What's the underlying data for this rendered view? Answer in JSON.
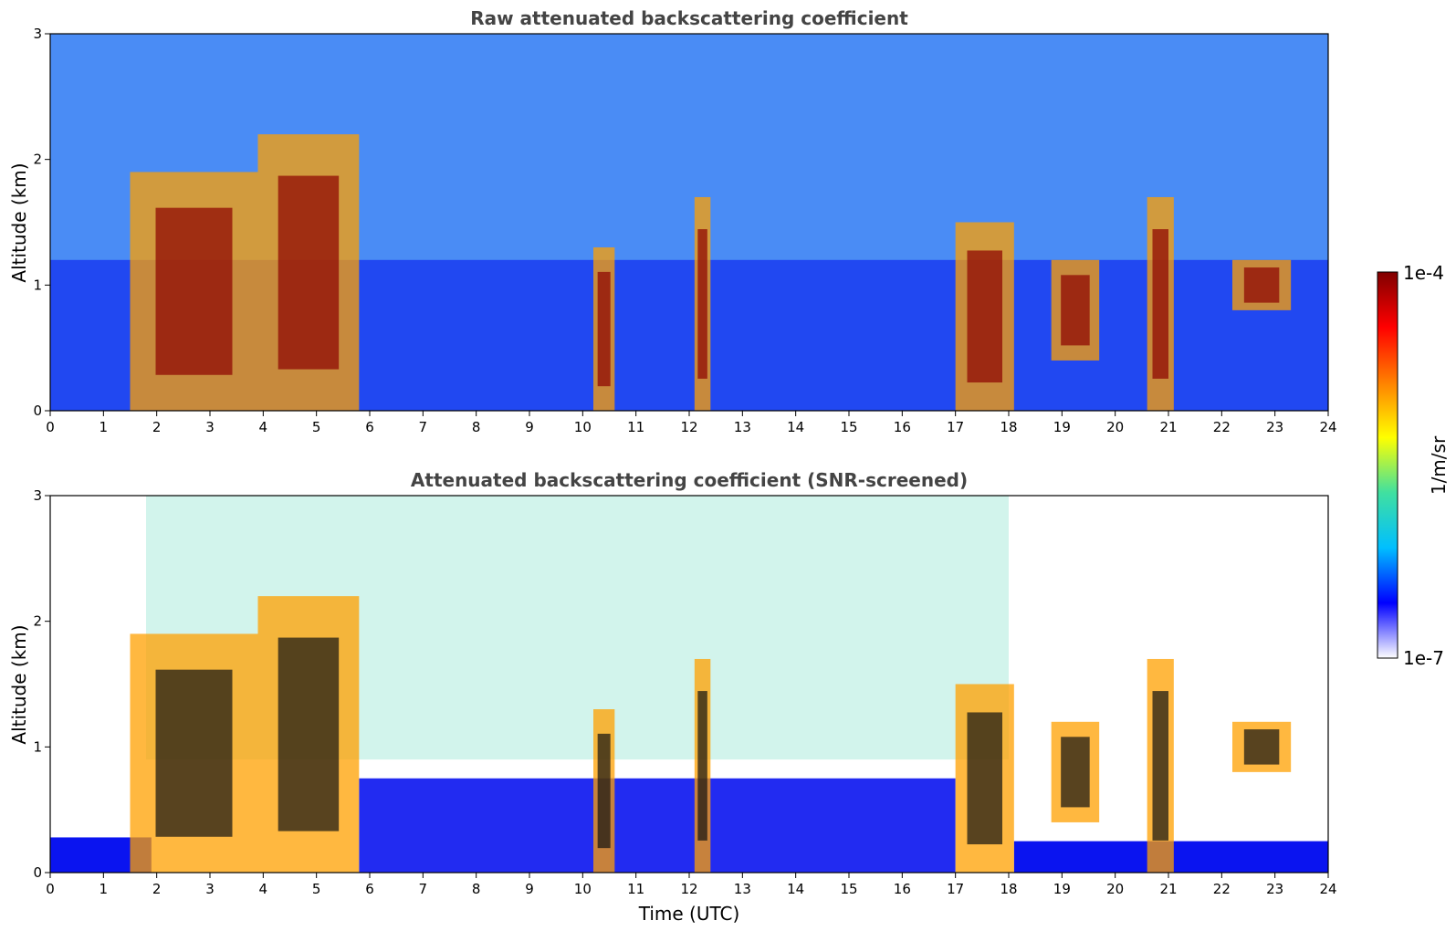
{
  "chart_data": [
    {
      "type": "heatmap",
      "title": "Raw attenuated backscattering coefficient",
      "xlabel": "",
      "ylabel": "Altitude (km)",
      "xlim": [
        0,
        24
      ],
      "ylim": [
        0,
        3
      ],
      "xticks": [
        "0",
        "1",
        "2",
        "3",
        "4",
        "5",
        "6",
        "7",
        "8",
        "9",
        "10",
        "11",
        "12",
        "13",
        "14",
        "15",
        "16",
        "17",
        "18",
        "19",
        "20",
        "21",
        "22",
        "23",
        "24"
      ],
      "yticks": [
        "0",
        "1",
        "2",
        "3"
      ],
      "features": [
        {
          "kind": "cloud",
          "x": [
            1.5,
            3.9
          ],
          "y": [
            0.0,
            1.9
          ]
        },
        {
          "kind": "cloud",
          "x": [
            3.9,
            5.8
          ],
          "y": [
            0.0,
            2.2
          ]
        },
        {
          "kind": "cloud",
          "x": [
            10.2,
            10.6
          ],
          "y": [
            0.0,
            1.3
          ]
        },
        {
          "kind": "cloud",
          "x": [
            12.1,
            12.4
          ],
          "y": [
            0.0,
            1.7
          ]
        },
        {
          "kind": "cloud",
          "x": [
            17.0,
            18.1
          ],
          "y": [
            0.0,
            1.5
          ]
        },
        {
          "kind": "cloud",
          "x": [
            18.8,
            19.7
          ],
          "y": [
            0.4,
            1.2
          ]
        },
        {
          "kind": "cloud",
          "x": [
            20.6,
            21.1
          ],
          "y": [
            0.0,
            1.7
          ]
        },
        {
          "kind": "cloud",
          "x": [
            22.2,
            23.3
          ],
          "y": [
            0.8,
            1.2
          ]
        }
      ]
    },
    {
      "type": "heatmap",
      "title": "Attenuated backscattering coefficient (SNR-screened)",
      "xlabel": "Time (UTC)",
      "ylabel": "Altitude (km)",
      "xlim": [
        0,
        24
      ],
      "ylim": [
        0,
        3
      ],
      "xticks": [
        "0",
        "1",
        "2",
        "3",
        "4",
        "5",
        "6",
        "7",
        "8",
        "9",
        "10",
        "11",
        "12",
        "13",
        "14",
        "15",
        "16",
        "17",
        "18",
        "19",
        "20",
        "21",
        "22",
        "23",
        "24"
      ],
      "yticks": [
        "0",
        "1",
        "2",
        "3"
      ],
      "features": [
        {
          "kind": "cloud",
          "x": [
            1.5,
            3.9
          ],
          "y": [
            0.0,
            1.9
          ]
        },
        {
          "kind": "cloud",
          "x": [
            3.9,
            5.8
          ],
          "y": [
            0.0,
            2.2
          ]
        },
        {
          "kind": "cloud",
          "x": [
            10.2,
            10.6
          ],
          "y": [
            0.0,
            1.3
          ]
        },
        {
          "kind": "cloud",
          "x": [
            12.1,
            12.4
          ],
          "y": [
            0.0,
            1.7
          ]
        },
        {
          "kind": "cloud",
          "x": [
            17.0,
            18.1
          ],
          "y": [
            0.0,
            1.5
          ]
        },
        {
          "kind": "cloud",
          "x": [
            18.8,
            19.7
          ],
          "y": [
            0.4,
            1.2
          ]
        },
        {
          "kind": "cloud",
          "x": [
            20.6,
            21.1
          ],
          "y": [
            0.0,
            1.7
          ]
        },
        {
          "kind": "cloud",
          "x": [
            22.2,
            23.3
          ],
          "y": [
            0.8,
            1.2
          ]
        }
      ]
    }
  ],
  "colorbar": {
    "label": "1/m/sr",
    "max_label": "1e-4",
    "min_label": "1e-7",
    "colormap": "jet",
    "colors": [
      "#ffffff",
      "#0000ff",
      "#00bfff",
      "#40e0a0",
      "#ffff00",
      "#ff8000",
      "#ff0000",
      "#800000"
    ]
  },
  "colors": {
    "low_signal": "#0a14f0",
    "noise": "#1e6cf0",
    "cloud_core": "#8b0000",
    "cloud_edge": "#ffa000",
    "screened_dark": "#111111"
  }
}
